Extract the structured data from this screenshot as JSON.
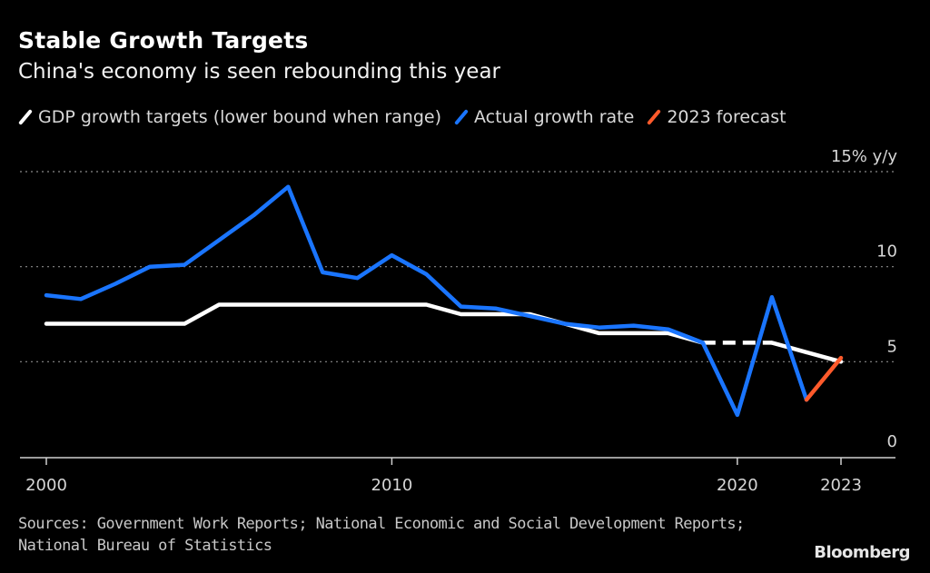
{
  "header": {
    "title": "Stable Growth Targets",
    "subtitle": "China's economy is seen rebounding this year"
  },
  "legend": [
    {
      "label": "GDP growth targets (lower bound when range)",
      "color": "#ffffff"
    },
    {
      "label": "Actual growth rate",
      "color": "#1a75ff"
    },
    {
      "label": "2023 forecast",
      "color": "#ff5a2b"
    }
  ],
  "footer": {
    "sources": "Sources: Government Work Reports; National Economic and Social Development Reports; National Bureau of Statistics",
    "brand": "Bloomberg"
  },
  "chart_data": {
    "type": "line",
    "title": "Stable Growth Targets",
    "subtitle": "China's economy is seen rebounding this year",
    "xlabel": "",
    "ylabel": "% y/y",
    "y_unit_label": "15% y/y",
    "xlim": [
      2000,
      2023
    ],
    "ylim": [
      0,
      15
    ],
    "y_ticks": [
      0,
      5,
      10,
      15
    ],
    "y_tick_labels": [
      "0",
      "5",
      "10",
      "15% y/y"
    ],
    "x_ticks": [
      2000,
      2010,
      2020,
      2023
    ],
    "x_tick_labels": [
      "2000",
      "2010",
      "2020",
      "2023"
    ],
    "grid": "horizontal dotted",
    "legend_position": "top-left",
    "series": [
      {
        "name": "GDP growth targets (lower bound when range)",
        "color": "#ffffff",
        "x": [
          2000,
          2001,
          2002,
          2003,
          2004,
          2005,
          2006,
          2007,
          2008,
          2009,
          2010,
          2011,
          2012,
          2013,
          2014,
          2015,
          2016,
          2017,
          2018,
          2019,
          2020,
          2021,
          2022,
          2023
        ],
        "values": [
          7,
          7,
          7,
          7,
          7,
          8,
          8,
          8,
          8,
          8,
          8,
          8,
          7.5,
          7.5,
          7.5,
          7,
          6.5,
          6.5,
          6.5,
          6,
          null,
          6,
          5.5,
          5
        ],
        "note": "No target set in 2020; gap shown as dashed line"
      },
      {
        "name": "Actual growth rate",
        "color": "#1a75ff",
        "x": [
          2000,
          2001,
          2002,
          2003,
          2004,
          2005,
          2006,
          2007,
          2008,
          2009,
          2010,
          2011,
          2012,
          2013,
          2014,
          2015,
          2016,
          2017,
          2018,
          2019,
          2020,
          2021,
          2022
        ],
        "values": [
          8.5,
          8.3,
          9.1,
          10.0,
          10.1,
          11.4,
          12.7,
          14.2,
          9.7,
          9.4,
          10.6,
          9.6,
          7.9,
          7.8,
          7.4,
          7.0,
          6.8,
          6.9,
          6.7,
          6.0,
          2.2,
          8.4,
          3.0
        ]
      },
      {
        "name": "2023 forecast",
        "color": "#ff5a2b",
        "x": [
          2022,
          2023
        ],
        "values": [
          3.0,
          5.2
        ]
      }
    ]
  }
}
